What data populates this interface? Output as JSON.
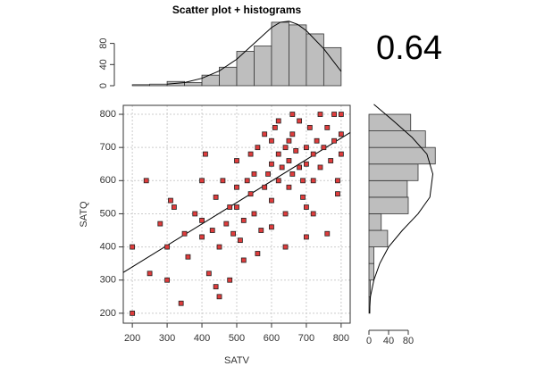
{
  "chart_data": [
    {
      "type": "scatter",
      "x_label": "SATV",
      "y_label": "SATQ",
      "color": "#e03c3c",
      "x": [
        200,
        200,
        240,
        250,
        280,
        300,
        300,
        310,
        320,
        340,
        350,
        360,
        380,
        400,
        400,
        400,
        410,
        420,
        430,
        440,
        440,
        450,
        450,
        460,
        470,
        480,
        490,
        500,
        500,
        500,
        510,
        520,
        530,
        540,
        550,
        550,
        560,
        570,
        580,
        590,
        600,
        600,
        600,
        610,
        620,
        620,
        630,
        640,
        640,
        650,
        650,
        660,
        660,
        670,
        680,
        680,
        690,
        700,
        700,
        700,
        710,
        720,
        720,
        730,
        740,
        740,
        750,
        760,
        770,
        780,
        780,
        790,
        800,
        800,
        800,
        790,
        760,
        700,
        640,
        560,
        520,
        480,
        620,
        580,
        540,
        660,
        690,
        720,
        600,
        650
      ],
      "y": [
        200,
        400,
        600,
        320,
        470,
        300,
        400,
        540,
        520,
        230,
        440,
        370,
        500,
        430,
        480,
        600,
        680,
        320,
        450,
        550,
        280,
        250,
        400,
        600,
        470,
        520,
        440,
        520,
        580,
        660,
        420,
        480,
        600,
        560,
        500,
        620,
        700,
        450,
        580,
        620,
        650,
        540,
        720,
        760,
        600,
        680,
        640,
        500,
        700,
        660,
        580,
        620,
        740,
        690,
        640,
        780,
        600,
        700,
        650,
        520,
        760,
        680,
        600,
        720,
        800,
        640,
        700,
        760,
        660,
        800,
        720,
        600,
        800,
        740,
        680,
        560,
        440,
        430,
        400,
        380,
        360,
        300,
        780,
        740,
        680,
        800,
        550,
        500,
        460,
        720
      ],
      "xlim": [
        174,
        826
      ],
      "ylim": [
        170,
        827
      ],
      "xticks": [
        200,
        300,
        400,
        500,
        600,
        700,
        800
      ],
      "yticks": [
        200,
        300,
        400,
        500,
        600,
        700,
        800
      ],
      "grid": true,
      "fit": {
        "x": [
          174,
          826
        ],
        "y": [
          323,
          745
        ]
      },
      "annotation": "0.64"
    },
    {
      "type": "histogram",
      "title": "Scatter plot + histograms",
      "color": "#bebebe",
      "bins": [
        200,
        250,
        300,
        350,
        400,
        450,
        500,
        550,
        600,
        650,
        700,
        750,
        800
      ],
      "counts": [
        2,
        3,
        8,
        6,
        20,
        35,
        65,
        75,
        120,
        115,
        98,
        72
      ],
      "xlim": [
        174,
        826
      ],
      "ylim": [
        0,
        130
      ],
      "yticks": [
        0,
        40,
        80
      ],
      "density": {
        "x": [
          300,
          350,
          400,
          450,
          500,
          550,
          600,
          625,
          650,
          675,
          700,
          750,
          800
        ],
        "y": [
          3,
          6,
          14,
          28,
          50,
          80,
          110,
          120,
          122,
          116,
          104,
          70,
          27
        ]
      }
    },
    {
      "type": "histogram",
      "orientation": "horizontal",
      "color": "#bebebe",
      "bins": [
        200,
        250,
        300,
        350,
        400,
        450,
        500,
        550,
        600,
        650,
        700,
        750,
        800
      ],
      "counts": [
        2,
        3,
        10,
        10,
        38,
        25,
        80,
        78,
        100,
        135,
        115,
        85
      ],
      "xlim": [
        0,
        140
      ],
      "ylim": [
        170,
        827
      ],
      "xticks": [
        0,
        40,
        80
      ],
      "density": {
        "x": [
          1,
          3,
          10,
          22,
          40,
          68,
          100,
          124,
          130,
          118,
          88,
          50,
          10
        ],
        "y": [
          200,
          250,
          300,
          350,
          400,
          450,
          500,
          550,
          620,
          680,
          730,
          780,
          830
        ]
      }
    }
  ]
}
